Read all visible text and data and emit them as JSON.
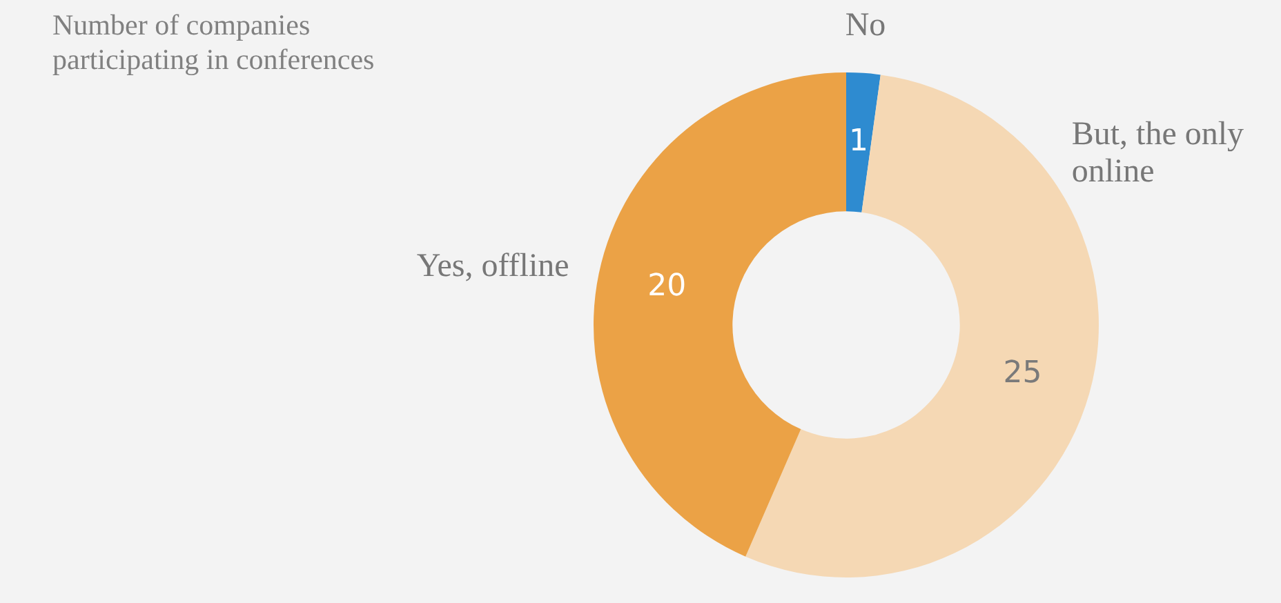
{
  "chart_data": {
    "type": "donut",
    "title": "Number of companies participating in conferences",
    "categories": [
      "No",
      "But, the only online",
      "Yes, offline"
    ],
    "values": [
      1,
      25,
      20
    ],
    "colors": [
      "#2e8bd0",
      "#f5d8b4",
      "#eba246"
    ],
    "data_labels": true,
    "legend": false
  }
}
